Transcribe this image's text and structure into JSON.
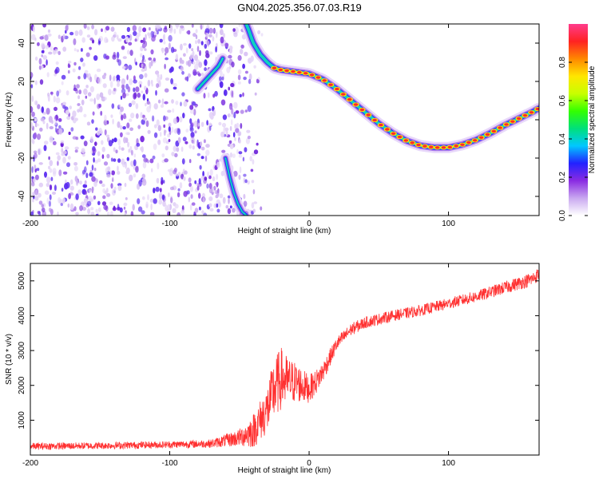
{
  "figure": {
    "title": "GN04.2025.356.07.03.R19"
  },
  "chart_data": [
    {
      "type": "heatmap",
      "xlabel": "Height of straight line (km)",
      "ylabel": "Frequency (Hz)",
      "xlim": [
        -200,
        165
      ],
      "ylim": [
        -50,
        50
      ],
      "xticks": [
        -200,
        -100,
        0,
        100
      ],
      "yticks": [
        -40,
        -20,
        0,
        20,
        40
      ],
      "grid": false,
      "colorbar": {
        "label": "Normalized spectral amplitude",
        "range": [
          0,
          1
        ],
        "ticks": [
          0.0,
          0.2,
          0.4,
          0.6,
          0.8
        ],
        "colors": [
          "#ffffff",
          "#c9a8f0",
          "#8a2be2",
          "#2222ff",
          "#00c8ff",
          "#00e07a",
          "#33ff00",
          "#c8ff00",
          "#ffe600",
          "#ff8800",
          "#ff2222",
          "#ff3c8c"
        ]
      },
      "ridge": {
        "x": [
          -45,
          -40,
          -35,
          -30,
          -25,
          -20,
          -15,
          -10,
          -5,
          0,
          10,
          20,
          30,
          40,
          50,
          60,
          70,
          80,
          90,
          100,
          110,
          120,
          130,
          140,
          150,
          160,
          165
        ],
        "y": [
          50,
          40,
          34,
          30,
          27,
          26,
          25.5,
          25,
          24.5,
          24,
          21,
          16,
          10,
          4,
          -2,
          -7,
          -11,
          -13.5,
          -14.5,
          -14.5,
          -13,
          -10.5,
          -7,
          -3,
          0.5,
          4,
          6
        ]
      },
      "lower_branch": {
        "x": [
          -60,
          -57,
          -54,
          -51,
          -48,
          -45
        ],
        "y": [
          -20,
          -30,
          -38,
          -44,
          -48,
          -50
        ]
      },
      "mid_feature": {
        "x": [
          -80,
          -75,
          -70,
          -65,
          -62
        ],
        "y": [
          16,
          20,
          24,
          28,
          32
        ]
      }
    },
    {
      "type": "line",
      "xlabel": "Height of straight line (km)",
      "ylabel": "SNR (10 * v/v)",
      "xlim": [
        -200,
        165
      ],
      "ylim": [
        0,
        5500
      ],
      "xticks": [
        -200,
        -100,
        0,
        100
      ],
      "yticks": [
        1000,
        2000,
        3000,
        4000,
        5000
      ],
      "grid": false,
      "series": [
        {
          "color": "#ff3030",
          "x": [
            -200,
            -150,
            -100,
            -70,
            -50,
            -40,
            -30,
            -25,
            -20,
            -15,
            -10,
            -5,
            0,
            5,
            10,
            15,
            20,
            30,
            40,
            60,
            80,
            100,
            120,
            140,
            160,
            165
          ],
          "y": [
            250,
            270,
            300,
            330,
            500,
            700,
            1300,
            1900,
            2200,
            2100,
            2100,
            2000,
            1900,
            2100,
            2400,
            2800,
            3200,
            3600,
            3800,
            4000,
            4150,
            4350,
            4550,
            4800,
            5050,
            5200
          ],
          "noise": [
            100,
            100,
            100,
            120,
            250,
            500,
            700,
            900,
            900,
            700,
            600,
            500,
            400,
            350,
            300,
            250,
            200,
            180,
            170,
            160,
            160,
            160,
            170,
            180,
            200,
            200
          ]
        }
      ]
    }
  ]
}
